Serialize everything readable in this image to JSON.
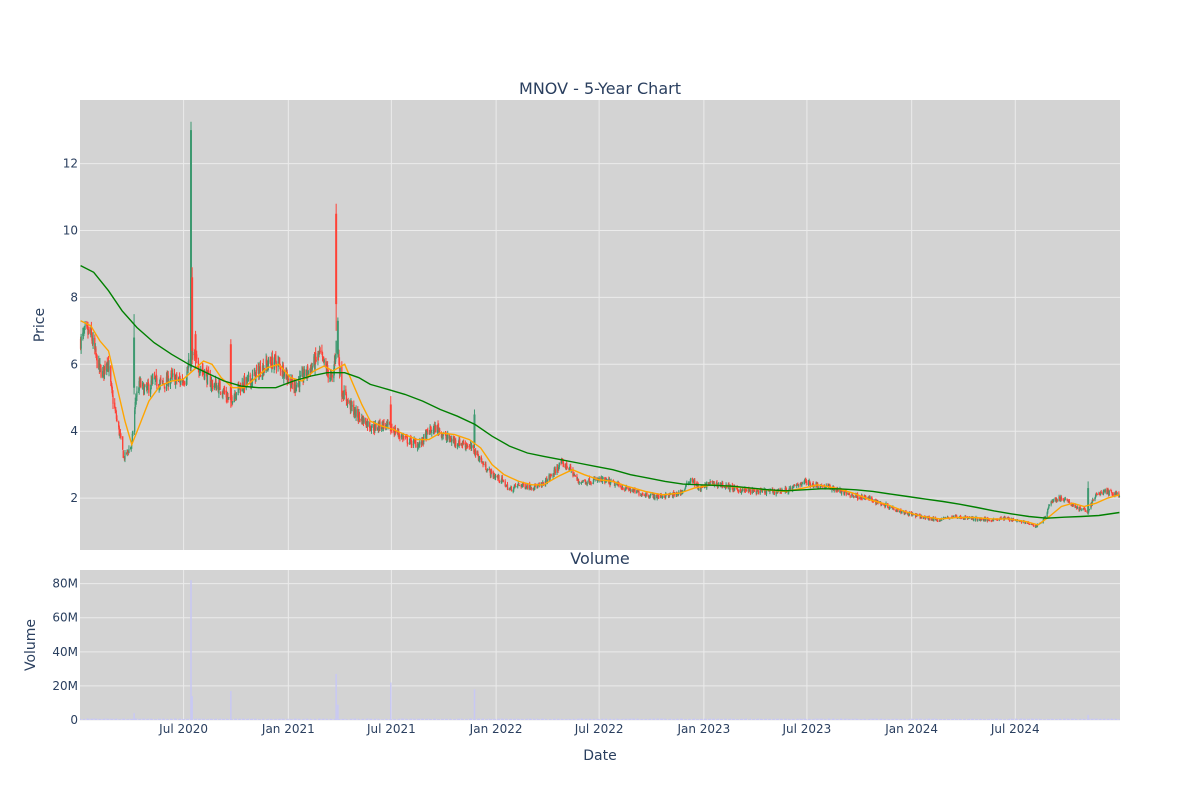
{
  "chart_data": [
    {
      "type": "candlestick",
      "title": "MNOV - 5-Year Chart",
      "ylabel": "Price",
      "ylim": [
        0.45,
        13.9
      ],
      "y_ticks": [
        2,
        4,
        6,
        8,
        10,
        12
      ],
      "x_ticks": [
        "Jul 2020",
        "Jan 2021",
        "Jul 2021",
        "Jan 2022",
        "Jul 2022",
        "Jan 2023",
        "Jul 2023",
        "Jan 2024",
        "Jul 2024"
      ],
      "xlim": [
        "2020-01-01",
        "2025-01-01"
      ],
      "grid": true,
      "colors": {
        "up": "#3d9970",
        "down": "#ff4136",
        "ma_short": "#ffa500",
        "ma_long": "#008000",
        "plot_bg": "#d3d3d3",
        "grid": "#ebebeb",
        "text": "#2a3f5f"
      },
      "close_path": [
        [
          "2020-01-02",
          6.7
        ],
        [
          "2020-01-10",
          6.95
        ],
        [
          "2020-01-20",
          6.9
        ],
        [
          "2020-02-01",
          6.0
        ],
        [
          "2020-02-10",
          5.7
        ],
        [
          "2020-02-18",
          6.2
        ],
        [
          "2020-02-26",
          5.1
        ],
        [
          "2020-03-06",
          4.3
        ],
        [
          "2020-03-12",
          3.8
        ],
        [
          "2020-03-18",
          3.2
        ],
        [
          "2020-03-25",
          3.4
        ],
        [
          "2020-04-01",
          3.6
        ],
        [
          "2020-04-08",
          5.0
        ],
        [
          "2020-04-15",
          5.4
        ],
        [
          "2020-04-25",
          5.2
        ],
        [
          "2020-05-10",
          5.5
        ],
        [
          "2020-05-25",
          5.4
        ],
        [
          "2020-06-10",
          5.6
        ],
        [
          "2020-06-25",
          5.5
        ],
        [
          "2020-07-05",
          5.6
        ],
        [
          "2020-07-12",
          6.1
        ],
        [
          "2020-07-18",
          6.3
        ],
        [
          "2020-07-25",
          6.0
        ],
        [
          "2020-08-05",
          5.8
        ],
        [
          "2020-08-20",
          5.4
        ],
        [
          "2020-09-05",
          5.3
        ],
        [
          "2020-09-20",
          4.9
        ],
        [
          "2020-10-05",
          5.3
        ],
        [
          "2020-10-25",
          5.5
        ],
        [
          "2020-11-10",
          5.8
        ],
        [
          "2020-11-25",
          6.0
        ],
        [
          "2020-12-10",
          6.1
        ],
        [
          "2020-12-25",
          5.8
        ],
        [
          "2021-01-10",
          5.3
        ],
        [
          "2021-01-25",
          5.6
        ],
        [
          "2021-02-10",
          5.9
        ],
        [
          "2021-02-25",
          6.3
        ],
        [
          "2021-03-10",
          5.8
        ],
        [
          "2021-03-20",
          5.5
        ],
        [
          "2021-03-27",
          6.8
        ],
        [
          "2021-04-05",
          5.2
        ],
        [
          "2021-04-15",
          4.9
        ],
        [
          "2021-04-30",
          4.5
        ],
        [
          "2021-05-15",
          4.3
        ],
        [
          "2021-05-30",
          4.1
        ],
        [
          "2021-06-15",
          4.2
        ],
        [
          "2021-06-30",
          4.1
        ],
        [
          "2021-07-15",
          3.9
        ],
        [
          "2021-08-01",
          3.7
        ],
        [
          "2021-08-20",
          3.6
        ],
        [
          "2021-09-05",
          4.0
        ],
        [
          "2021-09-20",
          4.1
        ],
        [
          "2021-10-05",
          3.8
        ],
        [
          "2021-10-20",
          3.7
        ],
        [
          "2021-11-10",
          3.6
        ],
        [
          "2021-11-25",
          3.4
        ],
        [
          "2021-12-10",
          3.0
        ],
        [
          "2021-12-25",
          2.7
        ],
        [
          "2022-01-10",
          2.55
        ],
        [
          "2022-01-25",
          2.25
        ],
        [
          "2022-02-10",
          2.4
        ],
        [
          "2022-03-01",
          2.35
        ],
        [
          "2022-03-20",
          2.35
        ],
        [
          "2022-04-10",
          2.7
        ],
        [
          "2022-04-25",
          3.05
        ],
        [
          "2022-05-10",
          2.9
        ],
        [
          "2022-05-25",
          2.5
        ],
        [
          "2022-06-10",
          2.5
        ],
        [
          "2022-07-01",
          2.55
        ],
        [
          "2022-07-25",
          2.45
        ],
        [
          "2022-08-15",
          2.3
        ],
        [
          "2022-09-10",
          2.15
        ],
        [
          "2022-10-10",
          2.05
        ],
        [
          "2022-11-10",
          2.1
        ],
        [
          "2022-11-25",
          2.2
        ],
        [
          "2022-12-10",
          2.6
        ],
        [
          "2022-12-25",
          2.25
        ],
        [
          "2023-01-10",
          2.45
        ],
        [
          "2023-02-01",
          2.4
        ],
        [
          "2023-03-01",
          2.25
        ],
        [
          "2023-04-01",
          2.2
        ],
        [
          "2023-05-01",
          2.2
        ],
        [
          "2023-06-01",
          2.25
        ],
        [
          "2023-06-25",
          2.5
        ],
        [
          "2023-07-15",
          2.4
        ],
        [
          "2023-08-15",
          2.3
        ],
        [
          "2023-09-15",
          2.1
        ],
        [
          "2023-10-15",
          2.0
        ],
        [
          "2023-11-15",
          1.8
        ],
        [
          "2023-12-15",
          1.6
        ],
        [
          "2024-01-15",
          1.45
        ],
        [
          "2024-02-15",
          1.35
        ],
        [
          "2024-03-15",
          1.45
        ],
        [
          "2024-04-15",
          1.4
        ],
        [
          "2024-05-15",
          1.35
        ],
        [
          "2024-06-15",
          1.4
        ],
        [
          "2024-07-15",
          1.3
        ],
        [
          "2024-08-05",
          1.15
        ],
        [
          "2024-08-20",
          1.35
        ],
        [
          "2024-09-01",
          1.9
        ],
        [
          "2024-09-20",
          2.0
        ],
        [
          "2024-10-05",
          1.85
        ],
        [
          "2024-10-20",
          1.7
        ],
        [
          "2024-11-05",
          1.6
        ],
        [
          "2024-11-20",
          2.1
        ],
        [
          "2024-12-05",
          2.2
        ],
        [
          "2024-12-31",
          2.1
        ]
      ],
      "spikes": [
        {
          "date": "2020-04-05",
          "high": 7.5,
          "low": 5.1,
          "open": 5.3,
          "close": 6.8
        },
        {
          "date": "2020-07-14",
          "high": 13.25,
          "low": 5.8,
          "open": 5.9,
          "close": 13.0
        },
        {
          "date": "2020-07-16",
          "high": 8.9,
          "low": 6.0,
          "open": 8.6,
          "close": 6.4
        },
        {
          "date": "2020-07-22",
          "high": 7.0,
          "low": 5.9,
          "open": 6.9,
          "close": 6.2
        },
        {
          "date": "2020-09-22",
          "high": 6.75,
          "low": 4.7,
          "open": 6.6,
          "close": 5.0
        },
        {
          "date": "2021-03-26",
          "high": 10.8,
          "low": 7.0,
          "open": 10.5,
          "close": 7.8
        },
        {
          "date": "2021-03-29",
          "high": 7.4,
          "low": 6.2,
          "open": 6.3,
          "close": 7.3
        },
        {
          "date": "2021-06-30",
          "high": 5.05,
          "low": 3.9,
          "open": 4.8,
          "close": 4.0
        },
        {
          "date": "2021-11-24",
          "high": 4.65,
          "low": 3.5,
          "open": 3.6,
          "close": 4.5
        },
        {
          "date": "2024-11-06",
          "high": 2.5,
          "low": 1.5,
          "open": 1.6,
          "close": 2.3
        }
      ],
      "ma_short_path": [
        [
          "2020-01-02",
          7.3
        ],
        [
          "2020-01-20",
          7.15
        ],
        [
          "2020-02-05",
          6.7
        ],
        [
          "2020-02-20",
          6.4
        ],
        [
          "2020-03-05",
          5.4
        ],
        [
          "2020-03-20",
          4.3
        ],
        [
          "2020-04-01",
          3.6
        ],
        [
          "2020-04-15",
          4.2
        ],
        [
          "2020-05-01",
          4.9
        ],
        [
          "2020-05-20",
          5.35
        ],
        [
          "2020-06-10",
          5.5
        ],
        [
          "2020-06-30",
          5.55
        ],
        [
          "2020-07-20",
          5.85
        ],
        [
          "2020-08-05",
          6.1
        ],
        [
          "2020-08-20",
          6.0
        ],
        [
          "2020-09-05",
          5.6
        ],
        [
          "2020-09-25",
          5.3
        ],
        [
          "2020-10-15",
          5.3
        ],
        [
          "2020-11-05",
          5.6
        ],
        [
          "2020-11-25",
          5.9
        ],
        [
          "2020-12-15",
          6.0
        ],
        [
          "2021-01-05",
          5.6
        ],
        [
          "2021-01-25",
          5.5
        ],
        [
          "2021-02-15",
          5.8
        ],
        [
          "2021-03-05",
          5.95
        ],
        [
          "2021-03-20",
          5.8
        ],
        [
          "2021-04-10",
          6.0
        ],
        [
          "2021-04-25",
          5.4
        ],
        [
          "2021-05-10",
          4.8
        ],
        [
          "2021-05-25",
          4.3
        ],
        [
          "2021-06-15",
          4.15
        ],
        [
          "2021-07-05",
          4.05
        ],
        [
          "2021-07-25",
          3.9
        ],
        [
          "2021-08-15",
          3.75
        ],
        [
          "2021-09-05",
          3.75
        ],
        [
          "2021-09-25",
          3.95
        ],
        [
          "2021-10-20",
          3.9
        ],
        [
          "2021-11-15",
          3.75
        ],
        [
          "2021-12-05",
          3.5
        ],
        [
          "2021-12-25",
          3.0
        ],
        [
          "2022-01-15",
          2.7
        ],
        [
          "2022-02-10",
          2.5
        ],
        [
          "2022-03-05",
          2.4
        ],
        [
          "2022-03-25",
          2.4
        ],
        [
          "2022-04-20",
          2.65
        ],
        [
          "2022-05-15",
          2.85
        ],
        [
          "2022-06-05",
          2.7
        ],
        [
          "2022-06-30",
          2.55
        ],
        [
          "2022-07-25",
          2.5
        ],
        [
          "2022-08-20",
          2.35
        ],
        [
          "2022-09-20",
          2.2
        ],
        [
          "2022-10-20",
          2.1
        ],
        [
          "2022-11-20",
          2.15
        ],
        [
          "2022-12-15",
          2.3
        ],
        [
          "2023-01-15",
          2.4
        ],
        [
          "2023-02-15",
          2.35
        ],
        [
          "2023-03-20",
          2.3
        ],
        [
          "2023-04-20",
          2.25
        ],
        [
          "2023-05-25",
          2.2
        ],
        [
          "2023-06-25",
          2.3
        ],
        [
          "2023-07-20",
          2.4
        ],
        [
          "2023-08-20",
          2.3
        ],
        [
          "2023-09-20",
          2.15
        ],
        [
          "2023-10-20",
          1.95
        ],
        [
          "2023-11-20",
          1.8
        ],
        [
          "2023-12-20",
          1.6
        ],
        [
          "2024-01-20",
          1.45
        ],
        [
          "2024-02-20",
          1.38
        ],
        [
          "2024-03-20",
          1.42
        ],
        [
          "2024-04-20",
          1.42
        ],
        [
          "2024-05-20",
          1.38
        ],
        [
          "2024-06-20",
          1.38
        ],
        [
          "2024-07-20",
          1.3
        ],
        [
          "2024-08-10",
          1.2
        ],
        [
          "2024-08-30",
          1.45
        ],
        [
          "2024-09-20",
          1.75
        ],
        [
          "2024-10-10",
          1.85
        ],
        [
          "2024-10-30",
          1.75
        ],
        [
          "2024-11-20",
          1.85
        ],
        [
          "2024-12-10",
          2.0
        ],
        [
          "2024-12-31",
          2.1
        ]
      ],
      "ma_long_path": [
        [
          "2020-01-02",
          8.95
        ],
        [
          "2020-01-25",
          8.75
        ],
        [
          "2020-02-20",
          8.2
        ],
        [
          "2020-03-15",
          7.6
        ],
        [
          "2020-04-10",
          7.1
        ],
        [
          "2020-05-10",
          6.65
        ],
        [
          "2020-06-10",
          6.3
        ],
        [
          "2020-07-10",
          6.0
        ],
        [
          "2020-08-10",
          5.75
        ],
        [
          "2020-09-10",
          5.5
        ],
        [
          "2020-10-10",
          5.35
        ],
        [
          "2020-11-10",
          5.3
        ],
        [
          "2020-12-10",
          5.3
        ],
        [
          "2021-01-10",
          5.5
        ],
        [
          "2021-02-10",
          5.65
        ],
        [
          "2021-03-10",
          5.75
        ],
        [
          "2021-04-10",
          5.75
        ],
        [
          "2021-05-05",
          5.6
        ],
        [
          "2021-05-25",
          5.4
        ],
        [
          "2021-06-25",
          5.25
        ],
        [
          "2021-07-25",
          5.1
        ],
        [
          "2021-08-25",
          4.9
        ],
        [
          "2021-09-25",
          4.65
        ],
        [
          "2021-10-25",
          4.45
        ],
        [
          "2021-11-25",
          4.2
        ],
        [
          "2021-12-25",
          3.85
        ],
        [
          "2022-01-25",
          3.55
        ],
        [
          "2022-02-25",
          3.35
        ],
        [
          "2022-03-25",
          3.25
        ],
        [
          "2022-04-25",
          3.15
        ],
        [
          "2022-05-25",
          3.05
        ],
        [
          "2022-06-25",
          2.95
        ],
        [
          "2022-07-25",
          2.85
        ],
        [
          "2022-08-25",
          2.7
        ],
        [
          "2022-09-25",
          2.6
        ],
        [
          "2022-10-25",
          2.5
        ],
        [
          "2022-11-25",
          2.42
        ],
        [
          "2022-12-25",
          2.4
        ],
        [
          "2023-01-25",
          2.38
        ],
        [
          "2023-02-25",
          2.35
        ],
        [
          "2023-03-25",
          2.3
        ],
        [
          "2023-04-25",
          2.25
        ],
        [
          "2023-05-25",
          2.22
        ],
        [
          "2023-06-25",
          2.25
        ],
        [
          "2023-07-25",
          2.28
        ],
        [
          "2023-08-25",
          2.28
        ],
        [
          "2023-09-25",
          2.25
        ],
        [
          "2023-10-25",
          2.2
        ],
        [
          "2023-11-25",
          2.12
        ],
        [
          "2023-12-25",
          2.05
        ],
        [
          "2024-01-25",
          1.97
        ],
        [
          "2024-02-25",
          1.9
        ],
        [
          "2024-03-25",
          1.82
        ],
        [
          "2024-04-25",
          1.72
        ],
        [
          "2024-05-25",
          1.62
        ],
        [
          "2024-06-25",
          1.53
        ],
        [
          "2024-07-25",
          1.45
        ],
        [
          "2024-08-25",
          1.4
        ],
        [
          "2024-09-25",
          1.43
        ],
        [
          "2024-10-25",
          1.45
        ],
        [
          "2024-11-25",
          1.48
        ],
        [
          "2024-12-31",
          1.57
        ]
      ]
    },
    {
      "type": "bar",
      "title": "Volume",
      "ylabel": "Volume",
      "xlabel": "Date",
      "ylim": [
        0,
        88
      ],
      "y_tick_values": [
        0,
        20,
        40,
        60,
        80
      ],
      "y_tick_labels": [
        "0",
        "20M",
        "40M",
        "60M",
        "80M"
      ],
      "grid": true,
      "bar_color": "#c8c8f4",
      "volume_spikes_millions": [
        [
          "2020-04-05",
          4
        ],
        [
          "2020-07-14",
          82
        ],
        [
          "2020-07-16",
          14
        ],
        [
          "2020-09-22",
          17
        ],
        [
          "2021-03-26",
          27
        ],
        [
          "2021-03-29",
          9
        ],
        [
          "2021-06-30",
          22
        ],
        [
          "2021-11-24",
          18
        ],
        [
          "2024-11-06",
          3
        ]
      ],
      "baseline_volume_millions": 0.6
    }
  ]
}
